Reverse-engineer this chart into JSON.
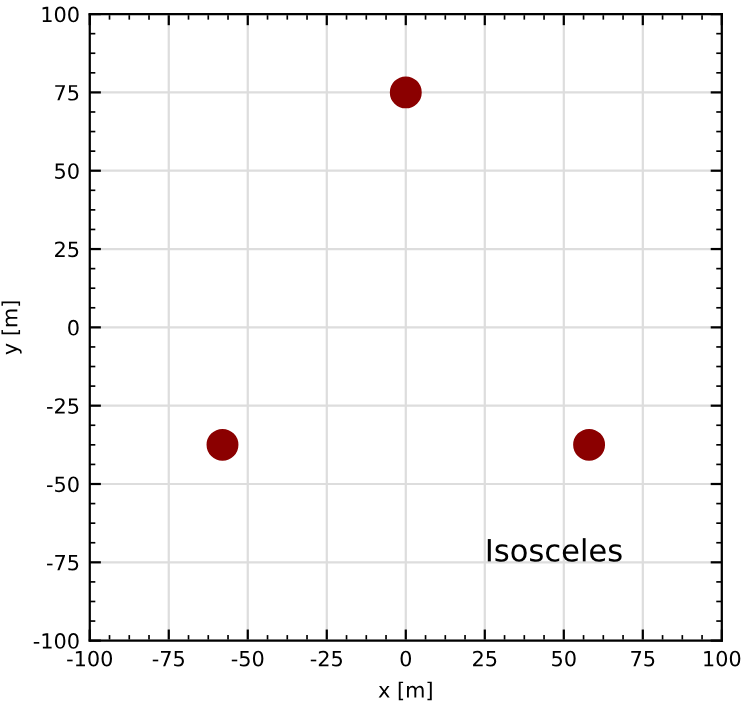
{
  "chart_data": {
    "type": "scatter",
    "xlabel": "x [m]",
    "ylabel": "y [m]",
    "x": [
      0,
      -58,
      58
    ],
    "series": [
      {
        "color": "#8b0000",
        "values": [
          75,
          -37.5,
          -37.5
        ]
      }
    ],
    "annotations": [
      "Isosceles"
    ],
    "xlim": [
      -100,
      100
    ],
    "ylim": [
      -100,
      100
    ],
    "xticks": [
      -100,
      -75,
      -50,
      -25,
      0,
      25,
      50,
      75,
      100
    ],
    "yticks": [
      -100,
      -75,
      -50,
      -25,
      0,
      25,
      50,
      75,
      100
    ],
    "marker": "circle",
    "grid": true,
    "legend": false
  }
}
